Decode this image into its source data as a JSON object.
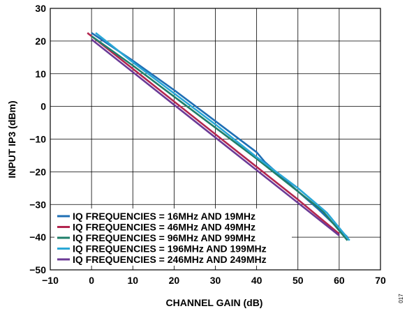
{
  "chart_data": {
    "type": "line",
    "title": "",
    "xlabel": "CHANNEL GAIN (dB)",
    "ylabel": "INPUT IP3 (dBm)",
    "xlim": [
      -10,
      70
    ],
    "ylim": [
      -50,
      30
    ],
    "xticks": [
      -10,
      0,
      10,
      20,
      30,
      40,
      50,
      60,
      70
    ],
    "yticks": [
      30,
      20,
      10,
      0,
      -10,
      -20,
      -30,
      -40,
      -50
    ],
    "xtick_labels": [
      "−10",
      "0",
      "10",
      "20",
      "30",
      "40",
      "50",
      "60",
      "70"
    ],
    "ytick_labels": [
      "30",
      "20",
      "10",
      "0",
      "−10",
      "−20",
      "−30",
      "−40",
      "−50"
    ],
    "grid": true,
    "legend_position": "bottom-left",
    "series": [
      {
        "name": "IQ FREQUENCIES = 16MHz AND 19MHz",
        "color": "#1f6fb5",
        "x": [
          0,
          10,
          20,
          30,
          40,
          42,
          50,
          55,
          62
        ],
        "y": [
          22.5,
          14,
          5,
          -4.5,
          -14,
          -17,
          -26,
          -31.5,
          -40
        ]
      },
      {
        "name": "IQ FREQUENCIES = 46MHz AND 49MHz",
        "color": "#b3264f",
        "x": [
          -1,
          10,
          20,
          30,
          40,
          50,
          60
        ],
        "y": [
          22.5,
          11.5,
          1.5,
          -8.5,
          -18.5,
          -28.5,
          -39
        ]
      },
      {
        "name": "IQ FREQUENCIES = 96MHz AND 99MHz",
        "color": "#1f7f6a",
        "x": [
          0,
          10,
          20,
          30,
          40,
          50,
          56,
          62
        ],
        "y": [
          21.5,
          12.5,
          3,
          -6.5,
          -16,
          -26,
          -32,
          -41
        ]
      },
      {
        "name": "IQ FREQUENCIES = 196MHz AND 199MHz",
        "color": "#2aa7d6",
        "x": [
          1,
          10,
          20,
          30,
          40,
          50,
          57,
          62.5
        ],
        "y": [
          22.5,
          13.5,
          4,
          -5.5,
          -15.5,
          -25,
          -32.5,
          -41
        ]
      },
      {
        "name": "IQ FREQUENCIES = 246MHz AND 249MHz",
        "color": "#6b3a96",
        "x": [
          0,
          10,
          20,
          30,
          40,
          50,
          60
        ],
        "y": [
          20.5,
          10.5,
          0.5,
          -9.5,
          -19.5,
          -29.5,
          -39.5
        ]
      }
    ],
    "figure_code": "017"
  }
}
